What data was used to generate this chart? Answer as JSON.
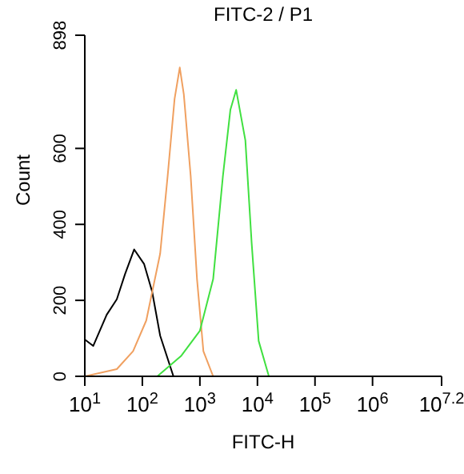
{
  "chart_data": {
    "type": "line",
    "title": "FITC-2 / P1",
    "xlabel": "FITC-H",
    "ylabel": "Count",
    "log": "x",
    "xlim": [
      10,
      15848932
    ],
    "xticks": [
      {
        "value": 10,
        "label": "10$^{1}$"
      },
      {
        "value": 100,
        "label": "10$^{2}$"
      },
      {
        "value": 1000,
        "label": "10$^{3}$"
      },
      {
        "value": 10000,
        "label": "10$^{4}$"
      },
      {
        "value": 100000,
        "label": "10$^{5}$"
      },
      {
        "value": 1000000,
        "label": "10$^{6}$"
      },
      {
        "value": 15848932,
        "label": "10$^{7.2}$"
      }
    ],
    "ylim": [
      0,
      898
    ],
    "yticks": [
      0,
      200,
      400,
      600,
      898
    ],
    "grid": false,
    "legend": false,
    "marker": "none",
    "line_style": "solid",
    "series": [
      {
        "color": "#000000",
        "x": [
          10,
          14,
          24,
          36,
          50,
          72,
          107,
          148,
          204,
          347
        ],
        "values": [
          97,
          80,
          162,
          203,
          269,
          334,
          296,
          223,
          107,
          0
        ]
      },
      {
        "color": "#f0a060",
        "x": [
          10,
          36,
          69,
          117,
          204,
          275,
          363,
          447,
          525,
          692,
          891,
          1150,
          1700
        ],
        "values": [
          0,
          19,
          66,
          147,
          323,
          527,
          730,
          813,
          743,
          527,
          256,
          66,
          0
        ]
      },
      {
        "color": "#40e040",
        "x": [
          182,
          468,
          1000,
          1700,
          2510,
          3390,
          4270,
          6170,
          7940,
          10500,
          15800
        ],
        "values": [
          0,
          53,
          120,
          256,
          527,
          702,
          754,
          621,
          350,
          93,
          0
        ]
      }
    ]
  }
}
